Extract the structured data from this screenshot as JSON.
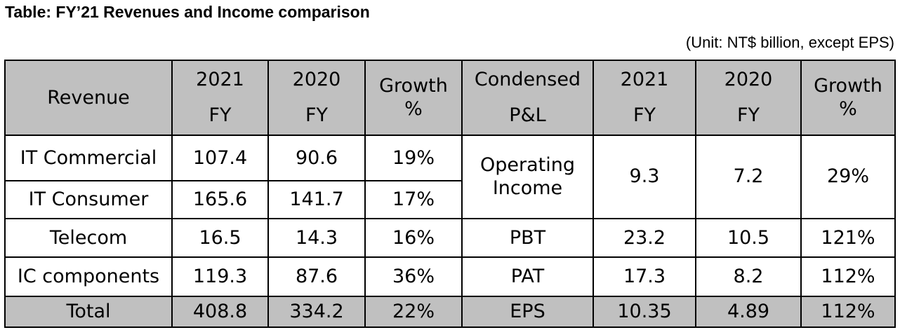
{
  "title": "Table: FY’21 Revenues and Income comparison",
  "unit_note": "(Unit: NT$ billion, except EPS)",
  "header": {
    "revenue": "Revenue",
    "y2021_a": "2021",
    "y2021_b": "FY",
    "y2020_a": "2020",
    "y2020_b": "FY",
    "growth_a": "Growth",
    "growth_b": "%",
    "pl_a": "Condensed",
    "pl_b": "P&L",
    "y2021_2a": "2021",
    "y2021_2b": "FY",
    "y2020_2a": "2020",
    "y2020_2b": "FY",
    "growth_2a": "Growth",
    "growth_2b": "%"
  },
  "revenue_rows": [
    {
      "segment": "IT Commercial",
      "fy2021": "107.4",
      "fy2020": "90.6",
      "growth": "19%"
    },
    {
      "segment": "IT Consumer",
      "fy2021": "165.6",
      "fy2020": "141.7",
      "growth": "17%"
    },
    {
      "segment": "Telecom",
      "fy2021": "16.5",
      "fy2020": "14.3",
      "growth": "16%"
    },
    {
      "segment": "IC components",
      "fy2021": "119.3",
      "fy2020": "87.6",
      "growth": "36%"
    }
  ],
  "revenue_total": {
    "segment": "Total",
    "fy2021": "408.8",
    "fy2020": "334.2",
    "growth": "22%"
  },
  "pl_rows": [
    {
      "item_a": "Operating",
      "item_b": "Income",
      "fy2021": "9.3",
      "fy2020": "7.2",
      "growth": "29%"
    },
    {
      "item": "PBT",
      "fy2021": "23.2",
      "fy2020": "10.5",
      "growth": "121%"
    },
    {
      "item": "PAT",
      "fy2021": "17.3",
      "fy2020": "8.2",
      "growth": "112%"
    },
    {
      "item": "EPS",
      "fy2021": "10.35",
      "fy2020": "4.89",
      "growth": "112%"
    }
  ],
  "colors": {
    "header_bg": "#c0c0c0",
    "border": "#000000"
  }
}
